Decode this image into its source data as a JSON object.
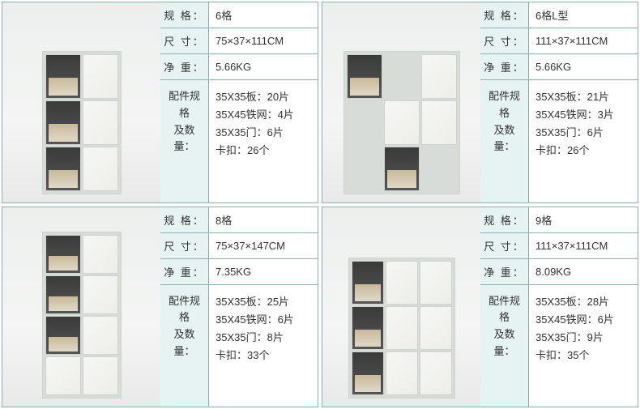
{
  "labels": {
    "spec": "规 格：",
    "size": "尺 寸：",
    "weight": "净 重：",
    "parts": "配件规格\n及数量："
  },
  "products": [
    {
      "spec": "6格",
      "size": "75×37×111CM",
      "weight": "5.66KG",
      "parts": "35X35板：20片\n35X45铁网：4片\n35X35门：6片\n卡扣：26个",
      "shape": "c6"
    },
    {
      "spec": "6格L型",
      "size": "111×37×111CM",
      "weight": "5.66KG",
      "parts": "35X35板：21片\n35X45铁网：3片\n35X35门：6片\n卡扣：26个",
      "shape": "cL"
    },
    {
      "spec": "8格",
      "size": "75×37×147CM",
      "weight": "7.35KG",
      "parts": "35X35板：25片\n35X45铁网：6片\n35X35门：8片\n卡扣：33个",
      "shape": "c8"
    },
    {
      "spec": "9格",
      "size": "111×37×111CM",
      "weight": "8.09KG",
      "parts": "35X35板：28片\n35X45铁网：6片\n35X35门：9片\n卡扣：35个",
      "shape": "c9"
    }
  ],
  "colors": {
    "border": "#8ab0b0",
    "label_bg": "#e7f3f2",
    "value_bg": "#ffffff",
    "photo_bg": "#f0f1ef"
  }
}
